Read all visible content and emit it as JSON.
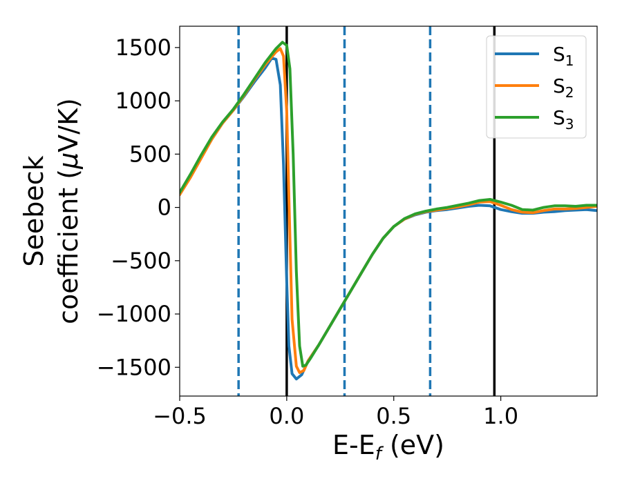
{
  "chart_data": {
    "type": "line",
    "xlabel": {
      "main": "E-E",
      "sub": "f",
      "rest": " (eV)"
    },
    "ylabel": {
      "line1": "Seebeck",
      "line2_a": "coefficient  (",
      "line2_mu": "μ",
      "line2_b": "V/K)"
    },
    "xlim": [
      -0.5,
      1.45
    ],
    "ylim": [
      -1770,
      1700
    ],
    "xticks": [
      {
        "value": -0.5,
        "label": "−0.5"
      },
      {
        "value": 0.0,
        "label": "0.0"
      },
      {
        "value": 0.5,
        "label": "0.5"
      },
      {
        "value": 1.0,
        "label": "1.0"
      }
    ],
    "yticks": [
      {
        "value": 1500,
        "label": "1500"
      },
      {
        "value": 1000,
        "label": "1000"
      },
      {
        "value": 500,
        "label": "500"
      },
      {
        "value": 0,
        "label": "0"
      },
      {
        "value": -500,
        "label": "−500"
      },
      {
        "value": -1000,
        "label": "−1000"
      },
      {
        "value": -1500,
        "label": "−1500"
      }
    ],
    "vlines": [
      {
        "x": -0.225,
        "style": "dashed",
        "color": "#1f77b4"
      },
      {
        "x": 0.0,
        "style": "solid",
        "color": "#000000"
      },
      {
        "x": 0.27,
        "style": "dashed",
        "color": "#1f77b4"
      },
      {
        "x": 0.67,
        "style": "dashed",
        "color": "#1f77b4"
      },
      {
        "x": 0.97,
        "style": "solid",
        "color": "#000000"
      }
    ],
    "legend_position": "top-right",
    "series": [
      {
        "name": "S",
        "sub": "1",
        "color": "#1f77b4",
        "points": [
          [
            -0.5,
            120
          ],
          [
            -0.45,
            290
          ],
          [
            -0.4,
            470
          ],
          [
            -0.35,
            640
          ],
          [
            -0.3,
            790
          ],
          [
            -0.25,
            910
          ],
          [
            -0.2,
            1040
          ],
          [
            -0.15,
            1180
          ],
          [
            -0.1,
            1310
          ],
          [
            -0.07,
            1400
          ],
          [
            -0.05,
            1390
          ],
          [
            -0.03,
            1150
          ],
          [
            -0.015,
            400
          ],
          [
            0.0,
            -700
          ],
          [
            0.01,
            -1300
          ],
          [
            0.025,
            -1560
          ],
          [
            0.045,
            -1610
          ],
          [
            0.07,
            -1570
          ],
          [
            0.1,
            -1440
          ],
          [
            0.15,
            -1290
          ],
          [
            0.2,
            -1120
          ],
          [
            0.25,
            -950
          ],
          [
            0.3,
            -780
          ],
          [
            0.35,
            -610
          ],
          [
            0.4,
            -440
          ],
          [
            0.45,
            -290
          ],
          [
            0.5,
            -180
          ],
          [
            0.55,
            -110
          ],
          [
            0.6,
            -70
          ],
          [
            0.65,
            -45
          ],
          [
            0.7,
            -30
          ],
          [
            0.75,
            -20
          ],
          [
            0.8,
            -5
          ],
          [
            0.85,
            10
          ],
          [
            0.9,
            20
          ],
          [
            0.95,
            15
          ],
          [
            1.0,
            -20
          ],
          [
            1.05,
            -40
          ],
          [
            1.1,
            -55
          ],
          [
            1.15,
            -55
          ],
          [
            1.2,
            -45
          ],
          [
            1.25,
            -40
          ],
          [
            1.3,
            -30
          ],
          [
            1.35,
            -25
          ],
          [
            1.4,
            -20
          ],
          [
            1.45,
            -30
          ]
        ]
      },
      {
        "name": "S",
        "sub": "2",
        "color": "#ff7f0e",
        "points": [
          [
            -0.5,
            120
          ],
          [
            -0.45,
            280
          ],
          [
            -0.4,
            460
          ],
          [
            -0.35,
            640
          ],
          [
            -0.3,
            790
          ],
          [
            -0.25,
            910
          ],
          [
            -0.2,
            1050
          ],
          [
            -0.15,
            1200
          ],
          [
            -0.1,
            1340
          ],
          [
            -0.05,
            1460
          ],
          [
            -0.03,
            1490
          ],
          [
            -0.015,
            1420
          ],
          [
            0.0,
            900
          ],
          [
            0.01,
            100
          ],
          [
            0.025,
            -1050
          ],
          [
            0.045,
            -1490
          ],
          [
            0.06,
            -1550
          ],
          [
            0.08,
            -1530
          ],
          [
            0.1,
            -1440
          ],
          [
            0.15,
            -1290
          ],
          [
            0.2,
            -1120
          ],
          [
            0.25,
            -950
          ],
          [
            0.3,
            -780
          ],
          [
            0.35,
            -610
          ],
          [
            0.4,
            -440
          ],
          [
            0.45,
            -290
          ],
          [
            0.5,
            -180
          ],
          [
            0.55,
            -110
          ],
          [
            0.6,
            -65
          ],
          [
            0.65,
            -40
          ],
          [
            0.7,
            -25
          ],
          [
            0.75,
            -10
          ],
          [
            0.8,
            5
          ],
          [
            0.85,
            25
          ],
          [
            0.9,
            50
          ],
          [
            0.95,
            55
          ],
          [
            1.0,
            20
          ],
          [
            1.05,
            -20
          ],
          [
            1.1,
            -45
          ],
          [
            1.15,
            -50
          ],
          [
            1.2,
            -30
          ],
          [
            1.25,
            -15
          ],
          [
            1.3,
            -15
          ],
          [
            1.35,
            -10
          ],
          [
            1.4,
            0
          ],
          [
            1.45,
            10
          ]
        ]
      },
      {
        "name": "S",
        "sub": "3",
        "color": "#2ca02c",
        "points": [
          [
            -0.5,
            140
          ],
          [
            -0.45,
            310
          ],
          [
            -0.4,
            490
          ],
          [
            -0.35,
            660
          ],
          [
            -0.3,
            800
          ],
          [
            -0.25,
            920
          ],
          [
            -0.2,
            1060
          ],
          [
            -0.15,
            1210
          ],
          [
            -0.1,
            1360
          ],
          [
            -0.05,
            1490
          ],
          [
            -0.02,
            1550
          ],
          [
            0.0,
            1520
          ],
          [
            0.015,
            1300
          ],
          [
            0.03,
            500
          ],
          [
            0.045,
            -600
          ],
          [
            0.06,
            -1300
          ],
          [
            0.075,
            -1490
          ],
          [
            0.09,
            -1480
          ],
          [
            0.11,
            -1420
          ],
          [
            0.15,
            -1290
          ],
          [
            0.2,
            -1120
          ],
          [
            0.25,
            -950
          ],
          [
            0.3,
            -780
          ],
          [
            0.35,
            -610
          ],
          [
            0.4,
            -440
          ],
          [
            0.45,
            -290
          ],
          [
            0.5,
            -180
          ],
          [
            0.55,
            -105
          ],
          [
            0.6,
            -60
          ],
          [
            0.65,
            -35
          ],
          [
            0.7,
            -15
          ],
          [
            0.75,
            0
          ],
          [
            0.8,
            20
          ],
          [
            0.85,
            40
          ],
          [
            0.9,
            65
          ],
          [
            0.95,
            75
          ],
          [
            1.0,
            50
          ],
          [
            1.05,
            20
          ],
          [
            1.1,
            -20
          ],
          [
            1.15,
            -25
          ],
          [
            1.2,
            0
          ],
          [
            1.25,
            15
          ],
          [
            1.3,
            15
          ],
          [
            1.35,
            10
          ],
          [
            1.4,
            20
          ],
          [
            1.45,
            20
          ]
        ]
      }
    ]
  }
}
